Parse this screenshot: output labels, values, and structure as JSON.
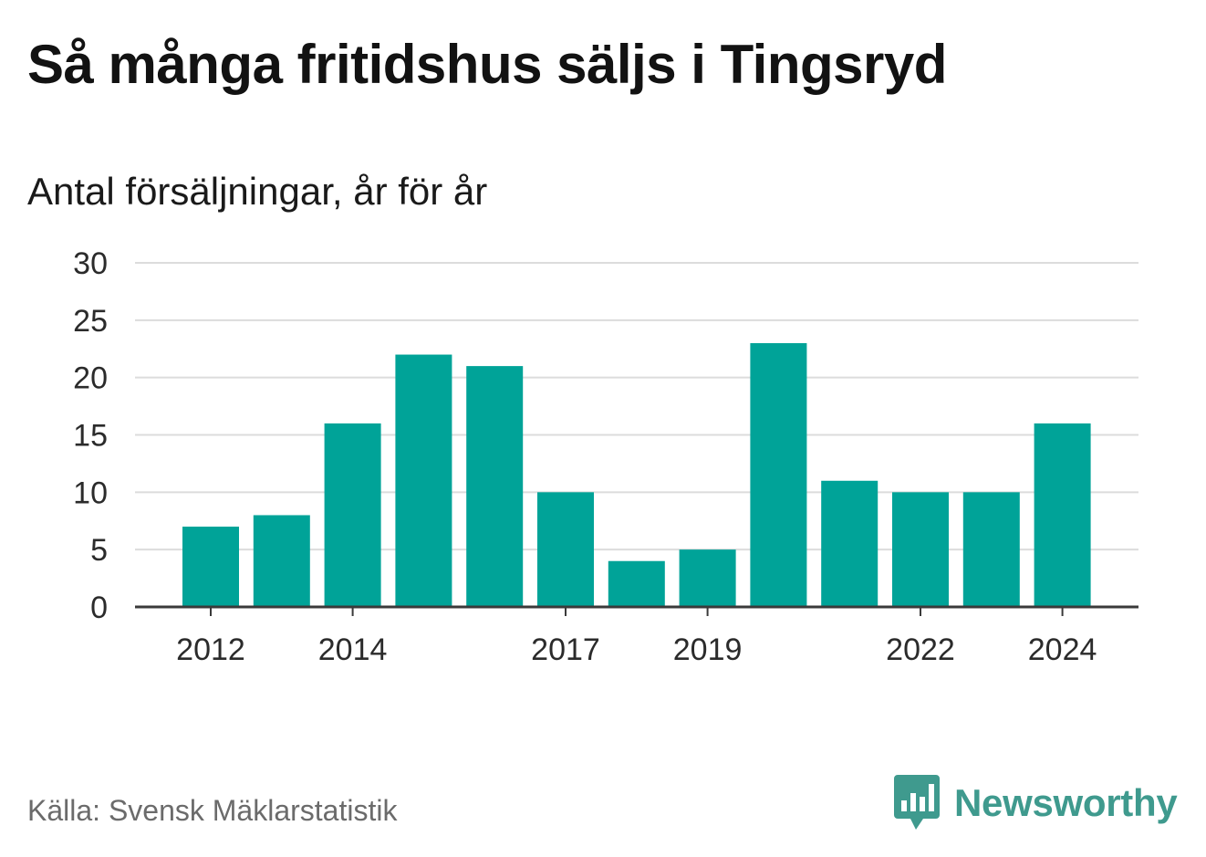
{
  "header": {
    "title": "Så många fritidshus säljs i Tingsryd",
    "subtitle": "Antal försäljningar, år för år"
  },
  "footer": {
    "source": "Källa: Svensk Mäklarstatistik",
    "brand": "Newsworthy",
    "brand_icon": "bar-chart-speech-bubble-icon",
    "brand_color": "#3f9a8e"
  },
  "colors": {
    "bar": "#00a398",
    "grid": "#dcdcdc",
    "axis": "#3a3a3a"
  },
  "chart_data": {
    "type": "bar",
    "title": "Så många fritidshus säljs i Tingsryd",
    "subtitle": "Antal försäljningar, år för år",
    "categories": [
      "2012",
      "2013",
      "2014",
      "2015",
      "2016",
      "2017",
      "2018",
      "2019",
      "2020",
      "2021",
      "2022",
      "2023",
      "2024"
    ],
    "values": [
      7,
      8,
      16,
      22,
      21,
      10,
      4,
      5,
      23,
      11,
      10,
      10,
      16
    ],
    "x_tick_labels": [
      "2012",
      "2014",
      "2017",
      "2019",
      "2022",
      "2024"
    ],
    "y_ticks": [
      "0",
      "5",
      "10",
      "15",
      "20",
      "25",
      "30"
    ],
    "ylim": [
      0,
      30
    ],
    "xlabel": "",
    "ylabel": "",
    "grid": true,
    "legend": "none"
  }
}
